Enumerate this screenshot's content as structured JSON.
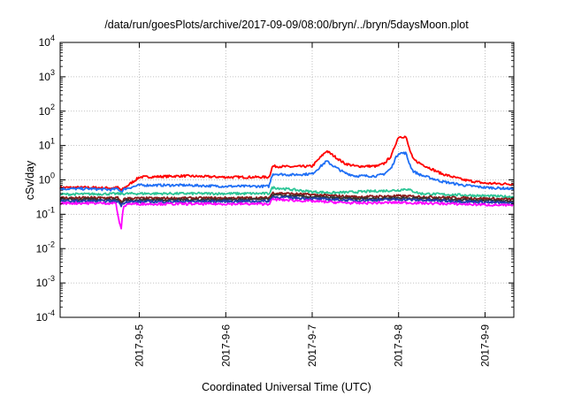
{
  "chart_data": {
    "type": "line",
    "title": "/data/run/goesPlots/archive/2017-09-09/08:00/bryn/../bryn/5daysMoon.plot",
    "xlabel": "Coordinated Universal Time (UTC)",
    "ylabel": "cSv/day",
    "yscale": "log",
    "ylim": [
      0.0001,
      10000
    ],
    "y_ticks": [
      {
        "value": 0.0001,
        "base": "10",
        "exp": "-4"
      },
      {
        "value": 0.001,
        "base": "10",
        "exp": "-3"
      },
      {
        "value": 0.01,
        "base": "10",
        "exp": "-2"
      },
      {
        "value": 0.1,
        "base": "10",
        "exp": "-1"
      },
      {
        "value": 1,
        "base": "10",
        "exp": "0"
      },
      {
        "value": 10,
        "base": "10",
        "exp": "1"
      },
      {
        "value": 100,
        "base": "10",
        "exp": "2"
      },
      {
        "value": 1000,
        "base": "10",
        "exp": "3"
      },
      {
        "value": 10000,
        "base": "10",
        "exp": "4"
      }
    ],
    "xlim": [
      "2017-09-04 02:00",
      "2017-09-09 08:00"
    ],
    "x_ticks": [
      "2017-9-5",
      "2017-9-6",
      "2017-9-7",
      "2017-9-8",
      "2017-9-9"
    ],
    "grid": true,
    "series": [
      {
        "color": "#ff0000",
        "x": [
          "2017-09-04 02:00",
          "2017-09-04 10:00",
          "2017-09-04 16:00",
          "2017-09-04 18:00",
          "2017-09-04 19:00",
          "2017-09-04 20:00",
          "2017-09-05 00:00",
          "2017-09-05 12:00",
          "2017-09-06 00:00",
          "2017-09-06 12:00",
          "2017-09-06 13:00",
          "2017-09-06 18:00",
          "2017-09-07 00:00",
          "2017-09-07 04:00",
          "2017-09-07 06:00",
          "2017-09-07 09:00",
          "2017-09-07 12:00",
          "2017-09-07 18:00",
          "2017-09-07 20:00",
          "2017-09-07 22:00",
          "2017-09-07 23:00",
          "2017-09-08 00:00",
          "2017-09-08 02:00",
          "2017-09-08 03:00",
          "2017-09-08 04:00",
          "2017-09-08 06:00",
          "2017-09-08 12:00",
          "2017-09-08 18:00",
          "2017-09-09 00:00",
          "2017-09-09 08:00"
        ],
        "y": [
          0.6,
          0.6,
          0.58,
          0.6,
          0.5,
          0.6,
          1.2,
          1.3,
          1.2,
          1.2,
          2.5,
          2.4,
          2.5,
          7,
          5,
          3,
          2.5,
          2.5,
          3,
          5,
          10,
          18,
          18,
          8,
          4,
          3,
          1.5,
          1.0,
          0.8,
          0.75
        ]
      },
      {
        "color": "#1f6ff5",
        "x": [
          "2017-09-04 02:00",
          "2017-09-04 10:00",
          "2017-09-04 16:00",
          "2017-09-04 18:00",
          "2017-09-04 19:00",
          "2017-09-04 20:00",
          "2017-09-05 00:00",
          "2017-09-05 12:00",
          "2017-09-06 00:00",
          "2017-09-06 12:00",
          "2017-09-06 13:00",
          "2017-09-06 18:00",
          "2017-09-07 00:00",
          "2017-09-07 04:00",
          "2017-09-07 06:00",
          "2017-09-07 09:00",
          "2017-09-07 12:00",
          "2017-09-07 18:00",
          "2017-09-07 20:00",
          "2017-09-07 22:00",
          "2017-09-07 23:00",
          "2017-09-08 00:00",
          "2017-09-08 02:00",
          "2017-09-08 03:00",
          "2017-09-08 04:00",
          "2017-09-08 06:00",
          "2017-09-08 12:00",
          "2017-09-08 18:00",
          "2017-09-09 00:00",
          "2017-09-09 08:00"
        ],
        "y": [
          0.55,
          0.55,
          0.52,
          0.55,
          0.45,
          0.55,
          0.7,
          0.7,
          0.65,
          0.65,
          1.5,
          1.4,
          1.5,
          3.5,
          2.5,
          1.6,
          1.3,
          1.3,
          1.5,
          2.2,
          4,
          6,
          6,
          3,
          1.8,
          1.4,
          0.9,
          0.7,
          0.6,
          0.55
        ]
      },
      {
        "color": "#2cc596",
        "x": [
          "2017-09-04 02:00",
          "2017-09-05 00:00",
          "2017-09-06 12:00",
          "2017-09-06 13:00",
          "2017-09-07 00:00",
          "2017-09-07 06:00",
          "2017-09-08 00:00",
          "2017-09-08 02:00",
          "2017-09-08 06:00",
          "2017-09-09 08:00"
        ],
        "y": [
          0.38,
          0.4,
          0.4,
          0.6,
          0.45,
          0.42,
          0.5,
          0.55,
          0.4,
          0.32
        ]
      },
      {
        "color": "#8b1a1a",
        "x": [
          "2017-09-04 02:00",
          "2017-09-04 18:00",
          "2017-09-04 19:00",
          "2017-09-04 20:00",
          "2017-09-06 12:00",
          "2017-09-06 13:00",
          "2017-09-07 12:00",
          "2017-09-08 00:00",
          "2017-09-09 08:00"
        ],
        "y": [
          0.3,
          0.3,
          0.22,
          0.29,
          0.3,
          0.42,
          0.32,
          0.34,
          0.27
        ]
      },
      {
        "color": "#333333",
        "x": [
          "2017-09-04 02:00",
          "2017-09-04 18:00",
          "2017-09-04 19:00",
          "2017-09-04 20:00",
          "2017-09-06 12:00",
          "2017-09-06 13:00",
          "2017-09-07 12:00",
          "2017-09-08 00:00",
          "2017-09-09 08:00"
        ],
        "y": [
          0.27,
          0.27,
          0.2,
          0.26,
          0.27,
          0.36,
          0.28,
          0.3,
          0.24
        ]
      },
      {
        "color": "#1f3fae",
        "x": [
          "2017-09-04 02:00",
          "2017-09-04 18:00",
          "2017-09-04 19:00",
          "2017-09-04 20:00",
          "2017-09-06 12:00",
          "2017-09-06 13:00",
          "2017-09-07 12:00",
          "2017-09-08 00:00",
          "2017-09-09 08:00"
        ],
        "y": [
          0.24,
          0.24,
          0.18,
          0.23,
          0.24,
          0.32,
          0.25,
          0.27,
          0.21
        ]
      },
      {
        "color": "#ff00ff",
        "x": [
          "2017-09-04 02:00",
          "2017-09-04 17:30",
          "2017-09-04 18:30",
          "2017-09-04 19:00",
          "2017-09-04 19:30",
          "2017-09-04 20:30",
          "2017-09-06 12:00",
          "2017-09-06 13:00",
          "2017-09-07 12:00",
          "2017-09-08 00:00",
          "2017-09-09 08:00"
        ],
        "y": [
          0.21,
          0.21,
          0.05,
          0.04,
          0.15,
          0.2,
          0.2,
          0.27,
          0.21,
          0.22,
          0.18
        ]
      }
    ]
  }
}
